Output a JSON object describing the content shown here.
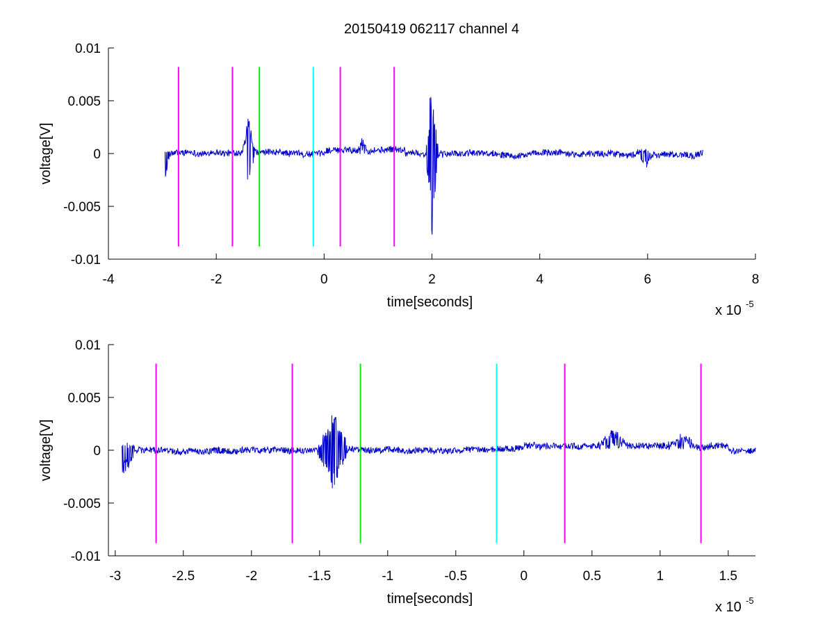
{
  "chart_data": [
    {
      "type": "line",
      "title": "20150419 062117 channel 4",
      "xlabel": "time[seconds]",
      "ylabel": "voltage[V]",
      "x_exponent_label": "x 10",
      "x_exponent": "-5",
      "xlim": [
        -4,
        8
      ],
      "ylim": [
        -0.01,
        0.01
      ],
      "x_ticks": [
        -4,
        -2,
        0,
        2,
        4,
        6,
        8
      ],
      "x_tick_labels": [
        "-4",
        "-2",
        "0",
        "2",
        "4",
        "6",
        "8"
      ],
      "y_ticks": [
        -0.01,
        -0.005,
        0,
        0.005,
        0.01
      ],
      "y_tick_labels": [
        "-0.01",
        "-0.005",
        "0",
        "0.005",
        "0.01"
      ],
      "signal_color": "#0000cc",
      "signal_range": [
        -2.95,
        7.03
      ],
      "signal_events": [
        {
          "x": -2.95,
          "min": -0.0027,
          "max": 0.0006
        },
        {
          "x": -1.4,
          "min": -0.0038,
          "max": 0.0036
        },
        {
          "x": 0.7,
          "min": -0.0001,
          "max": 0.0014
        },
        {
          "x": 2.0,
          "min": -0.008,
          "max": 0.0073
        },
        {
          "x": 5.95,
          "min": -0.0018,
          "max": 0.0004
        }
      ],
      "markers": [
        {
          "x": -2.7,
          "color": "#ff00ff"
        },
        {
          "x": -1.7,
          "color": "#ff00ff"
        },
        {
          "x": -1.2,
          "color": "#00ee00"
        },
        {
          "x": -0.2,
          "color": "#00ffff"
        },
        {
          "x": 0.3,
          "color": "#ff00ff"
        },
        {
          "x": 1.3,
          "color": "#ff00ff"
        }
      ],
      "marker_range": [
        -0.0088,
        0.0082
      ]
    },
    {
      "type": "line",
      "title": "",
      "xlabel": "time[seconds]",
      "ylabel": "voltage[V]",
      "x_exponent_label": "x 10",
      "x_exponent": "-5",
      "xlim": [
        -3.05,
        1.7
      ],
      "ylim": [
        -0.01,
        0.01
      ],
      "x_ticks": [
        -3,
        -2.5,
        -2,
        -1.5,
        -1,
        -0.5,
        0,
        0.5,
        1,
        1.5
      ],
      "x_tick_labels": [
        "-3",
        "-2.5",
        "-2",
        "-1.5",
        "-1",
        "-0.5",
        "0",
        "0.5",
        "1",
        "1.5"
      ],
      "y_ticks": [
        -0.01,
        -0.005,
        0,
        0.005,
        0.01
      ],
      "y_tick_labels": [
        "-0.01",
        "-0.005",
        "0",
        "0.005",
        "0.01"
      ],
      "signal_color": "#0000cc",
      "signal_range": [
        -2.95,
        1.7
      ],
      "signal_events": [
        {
          "x": -2.95,
          "min": -0.0027,
          "max": 0.0006
        },
        {
          "x": -1.4,
          "min": -0.0038,
          "max": 0.0036
        },
        {
          "x": 0.65,
          "min": -0.0001,
          "max": 0.0014
        },
        {
          "x": 1.15,
          "min": -0.0001,
          "max": 0.0011
        }
      ],
      "markers": [
        {
          "x": -2.7,
          "color": "#ff00ff"
        },
        {
          "x": -1.7,
          "color": "#ff00ff"
        },
        {
          "x": -1.2,
          "color": "#00ee00"
        },
        {
          "x": -0.2,
          "color": "#00ffff"
        },
        {
          "x": 0.3,
          "color": "#ff00ff"
        },
        {
          "x": 1.3,
          "color": "#ff00ff"
        }
      ],
      "marker_range": [
        -0.0088,
        0.0082
      ]
    }
  ]
}
